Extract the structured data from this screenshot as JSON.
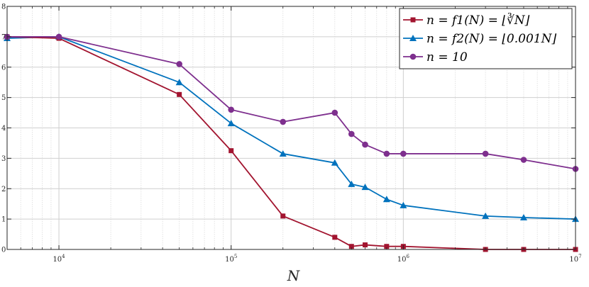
{
  "chart_data": {
    "type": "line",
    "xlabel": "N",
    "ylabel": "",
    "title": "",
    "x_scale": "log",
    "xlim": [
      5000,
      10000000
    ],
    "ylim": [
      0,
      8
    ],
    "grid": true,
    "legend_position": "top-right",
    "x_tick_labels": [
      {
        "value": 10000,
        "base": "10",
        "exp": "4"
      },
      {
        "value": 100000,
        "base": "10",
        "exp": "5"
      },
      {
        "value": 1000000,
        "base": "10",
        "exp": "6"
      },
      {
        "value": 10000000,
        "base": "10",
        "exp": "7"
      }
    ],
    "y_ticks": [
      0,
      1,
      2,
      3,
      4,
      5,
      6,
      7,
      8
    ],
    "series": [
      {
        "name": "n = f1(N) = ⌊∛N⌋",
        "color": "#a2142f",
        "marker": "square",
        "x": [
          5000,
          10000,
          50000,
          100000,
          200000,
          400000,
          500000,
          600000,
          800000,
          1000000,
          3000000,
          5000000,
          10000000
        ],
        "y": [
          7.0,
          6.95,
          5.1,
          3.25,
          1.1,
          0.4,
          0.1,
          0.15,
          0.1,
          0.1,
          0.0,
          0.0,
          0.0
        ]
      },
      {
        "name": "n = f2(N) = ⌊0.001N⌋",
        "color": "#0072bd",
        "marker": "triangle",
        "x": [
          5000,
          10000,
          50000,
          100000,
          200000,
          400000,
          500000,
          600000,
          800000,
          1000000,
          3000000,
          5000000,
          10000000
        ],
        "y": [
          6.95,
          7.0,
          5.5,
          4.15,
          3.15,
          2.85,
          2.15,
          2.05,
          1.65,
          1.45,
          1.1,
          1.05,
          1.0
        ]
      },
      {
        "name": "n = 10",
        "color": "#7e2f8e",
        "marker": "circle",
        "x": [
          5000,
          10000,
          50000,
          100000,
          200000,
          400000,
          500000,
          600000,
          800000,
          1000000,
          3000000,
          5000000,
          10000000
        ],
        "y": [
          7.0,
          7.0,
          6.1,
          4.6,
          4.2,
          4.5,
          3.8,
          3.45,
          3.15,
          3.15,
          3.15,
          2.95,
          2.65
        ]
      }
    ]
  }
}
